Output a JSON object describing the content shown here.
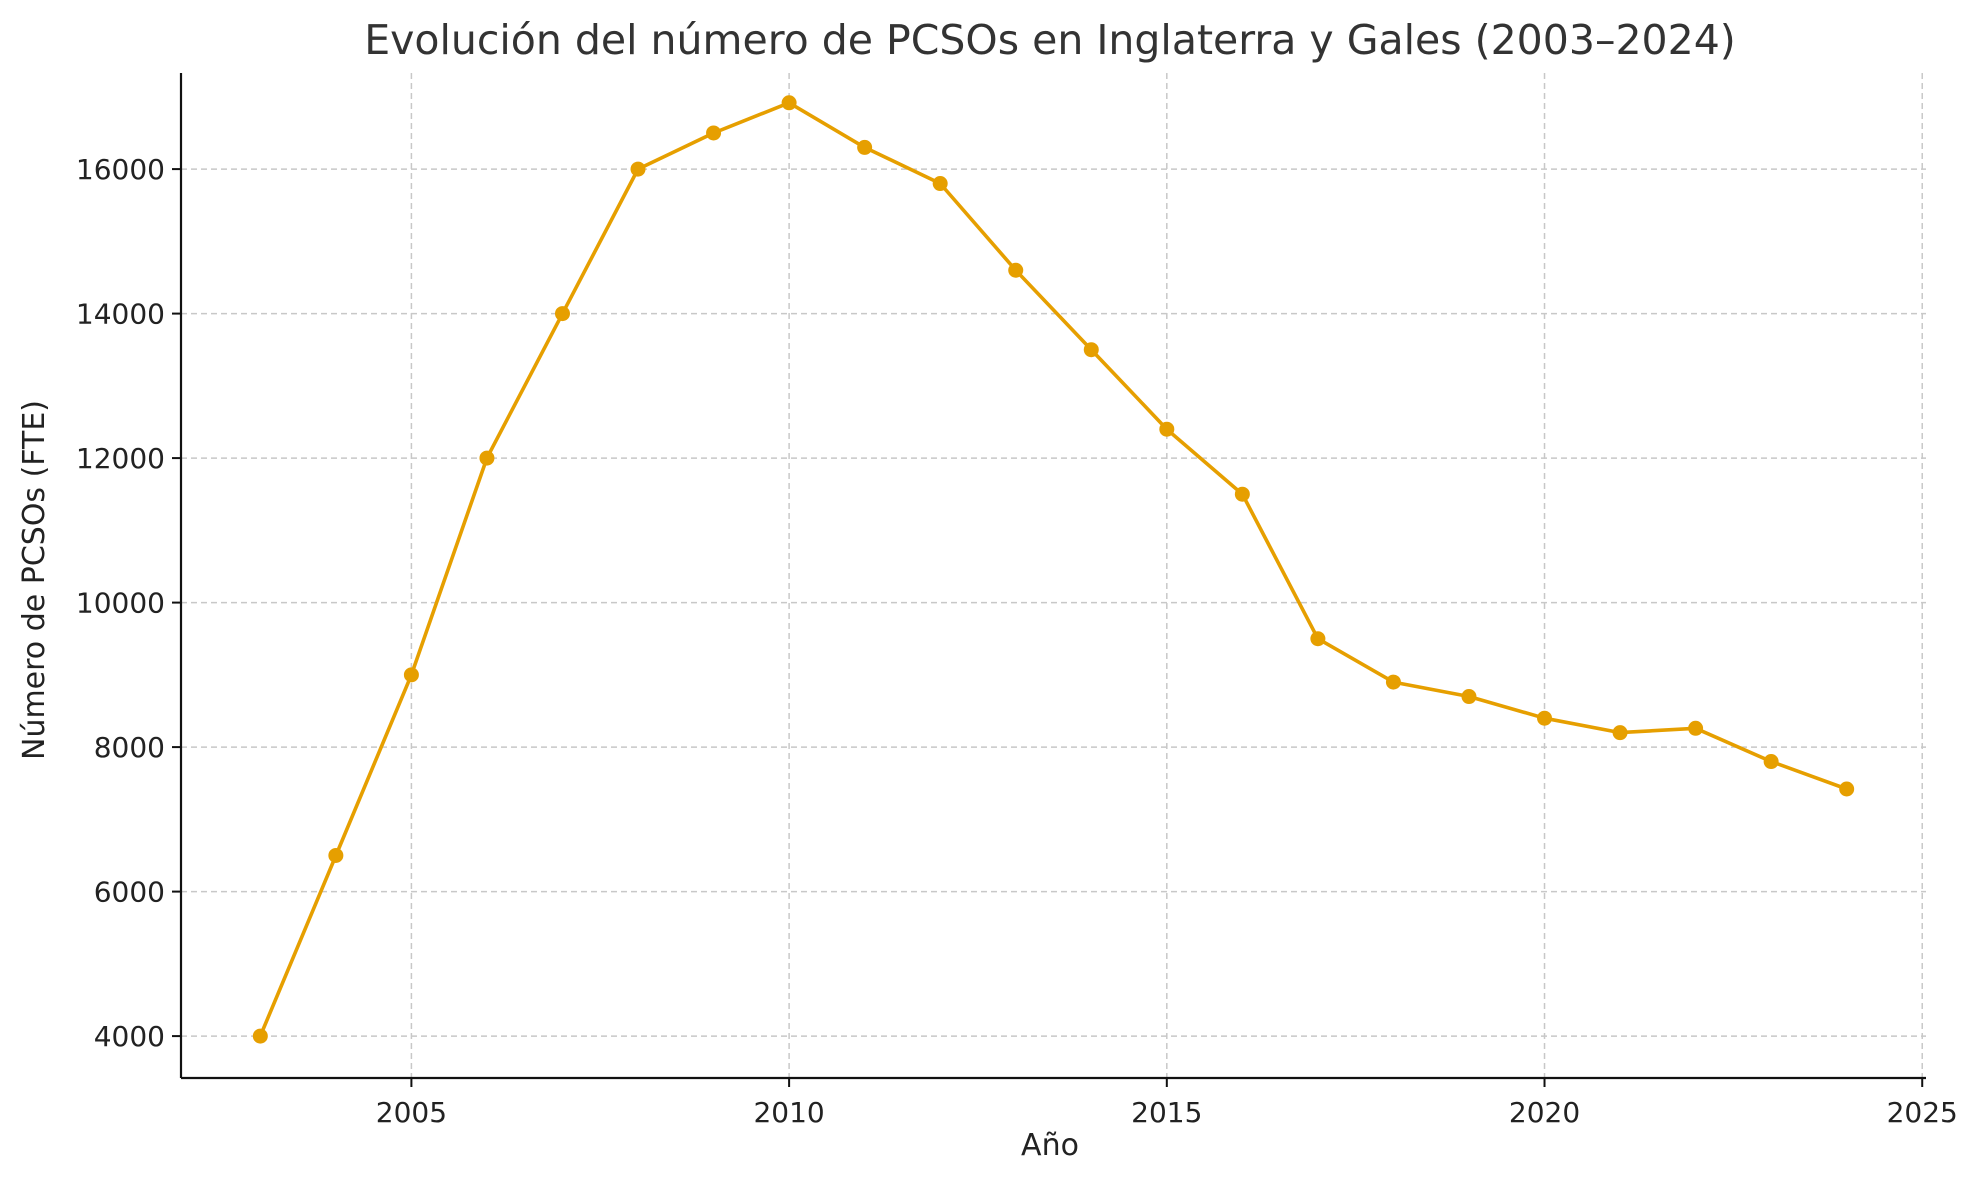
{
  "chart_data": {
    "type": "line",
    "title": "Evolución del número de PCSOs en Inglaterra y Gales (2003–2024)",
    "xlabel": "Año",
    "ylabel": "Número de PCSOs (FTE)",
    "xlim": [
      2001.95,
      2025.05
    ],
    "ylim": [
      3420,
      17330
    ],
    "xticks": [
      2005,
      2010,
      2015,
      2020,
      2025
    ],
    "yticks": [
      4000,
      6000,
      8000,
      10000,
      12000,
      14000,
      16000
    ],
    "grid": true,
    "series": [
      {
        "color": "#E69F00",
        "marker": "circle",
        "x": [
          2003,
          2004,
          2005,
          2006,
          2007,
          2008,
          2009,
          2010,
          2011,
          2012,
          2013,
          2014,
          2015,
          2016,
          2017,
          2018,
          2019,
          2020,
          2021,
          2022,
          2023,
          2024
        ],
        "y": [
          4000,
          6500,
          9000,
          12000,
          14000,
          16000,
          16500,
          16918,
          16300,
          15800,
          14600,
          13500,
          12400,
          11500,
          9500,
          8900,
          8700,
          8400,
          8200,
          8260,
          7800,
          7420
        ]
      }
    ]
  }
}
